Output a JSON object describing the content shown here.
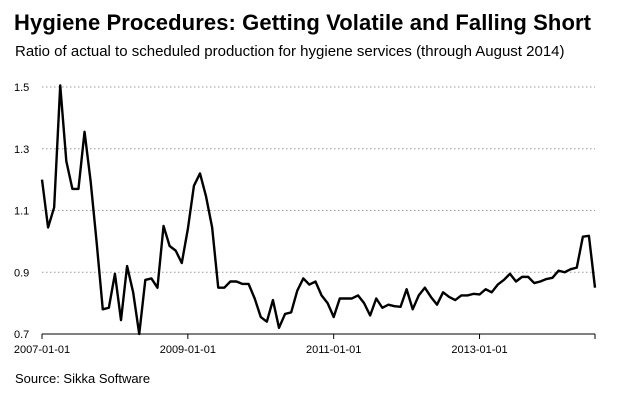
{
  "chart_data": {
    "type": "line",
    "title": "Hygiene Procedures: Getting Volatile and Falling Short",
    "subtitle": "Ratio of actual to scheduled production for hygiene services (through August 2014)",
    "source": "Source: Sikka Software",
    "xlabel": "",
    "ylabel": "",
    "ylim": [
      0.7,
      1.5
    ],
    "xlim": [
      "2007-01",
      "2014-08"
    ],
    "grid": "horizontal dotted",
    "y_ticks": [
      0.7,
      0.9,
      1.1,
      1.3,
      1.5
    ],
    "y_tick_labels": [
      "0.7",
      "0.9",
      "1.1",
      "1.3",
      "1.5"
    ],
    "x_ticks": [
      "2007-01-01",
      "2009-01-01",
      "2011-01-01",
      "2013-01-01"
    ],
    "x_tick_labels": [
      "2007-01-01",
      "2009-01-01",
      "2011-01-01",
      "2013-01-01"
    ],
    "series": [
      {
        "name": "Ratio of actual to scheduled production",
        "color": "#000000",
        "start": "2007-01",
        "frequency": "monthly",
        "values": [
          1.2,
          1.045,
          1.11,
          1.505,
          1.26,
          1.17,
          1.17,
          1.355,
          1.195,
          0.995,
          0.78,
          0.785,
          0.895,
          0.745,
          0.92,
          0.835,
          0.7,
          0.875,
          0.88,
          0.85,
          1.05,
          0.985,
          0.97,
          0.93,
          1.04,
          1.18,
          1.22,
          1.145,
          1.045,
          0.85,
          0.85,
          0.87,
          0.87,
          0.862,
          0.862,
          0.815,
          0.755,
          0.74,
          0.81,
          0.72,
          0.765,
          0.77,
          0.84,
          0.88,
          0.86,
          0.87,
          0.825,
          0.8,
          0.755,
          0.815,
          0.815,
          0.815,
          0.825,
          0.8,
          0.76,
          0.815,
          0.785,
          0.795,
          0.79,
          0.788,
          0.845,
          0.78,
          0.825,
          0.85,
          0.82,
          0.795,
          0.835,
          0.82,
          0.81,
          0.825,
          0.825,
          0.83,
          0.828,
          0.845,
          0.835,
          0.86,
          0.875,
          0.895,
          0.87,
          0.885,
          0.885,
          0.865,
          0.87,
          0.878,
          0.882,
          0.905,
          0.9,
          0.91,
          0.915,
          1.015,
          1.018,
          0.85
        ]
      }
    ]
  }
}
